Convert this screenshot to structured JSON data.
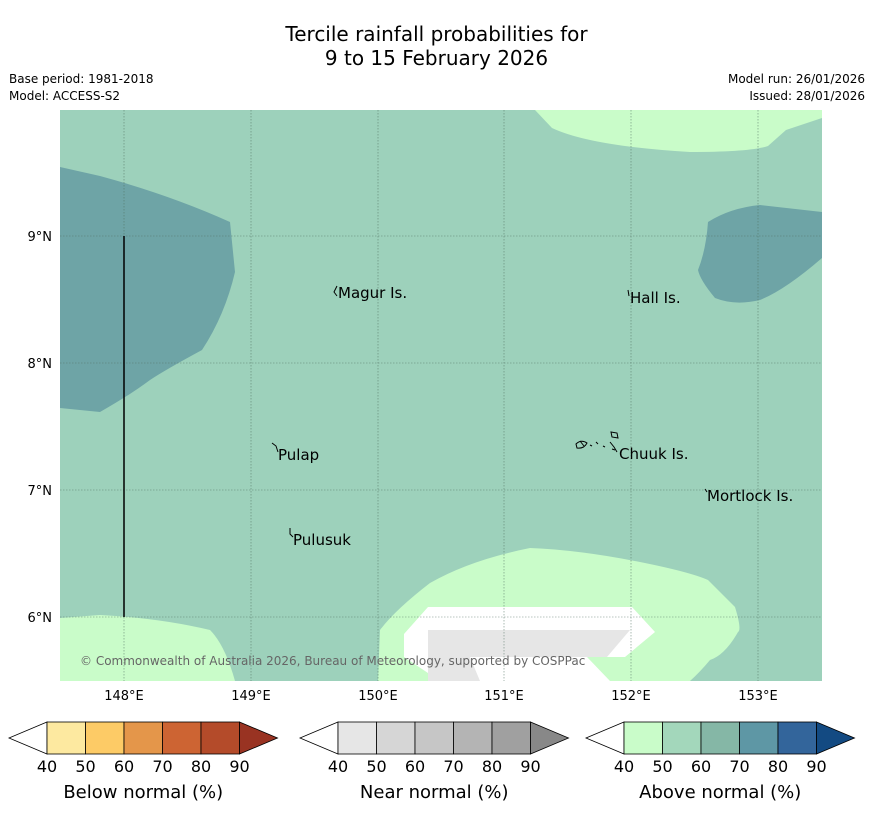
{
  "title": {
    "line1": "Tercile rainfall probabilities for",
    "line2": "9 to 15 February 2026"
  },
  "meta": {
    "base_period": "Base period: 1981-2018",
    "model": "Model: ACCESS-S2",
    "model_run": "Model run: 26/01/2026",
    "issued": "Issued: 28/01/2026"
  },
  "map": {
    "lon_labels": [
      "148°E",
      "149°E",
      "150°E",
      "151°E",
      "152°E",
      "153°E"
    ],
    "lat_labels": [
      "9°N",
      "8°N",
      "7°N",
      "6°N"
    ],
    "places": {
      "magur": "Magur Is.",
      "hall": "Hall Is.",
      "pulap": "Pulap",
      "chuuk": "Chuuk Is.",
      "mortlock": "Mortlock Is.",
      "pulusuk": "Pulusuk"
    },
    "copyright": "© Commonwealth of Australia 2026, Bureau of Meteorology, supported by COSPPac"
  },
  "colorbars": [
    {
      "name": "below",
      "label": "Below normal (%)",
      "ticks": [
        "40",
        "50",
        "60",
        "70",
        "80",
        "90"
      ],
      "colors": [
        "#ffffff",
        "#fde9a0",
        "#fdcb66",
        "#e4964a",
        "#cd6433",
        "#b44b2a",
        "#993322"
      ]
    },
    {
      "name": "near",
      "label": "Near normal (%)",
      "ticks": [
        "40",
        "50",
        "60",
        "70",
        "80",
        "90"
      ],
      "colors": [
        "#ffffff",
        "#e6e6e6",
        "#d6d6d6",
        "#c6c6c6",
        "#b4b4b4",
        "#a0a0a0",
        "#888888"
      ]
    },
    {
      "name": "above",
      "label": "Above normal (%)",
      "ticks": [
        "40",
        "50",
        "60",
        "70",
        "80",
        "90"
      ],
      "colors": [
        "#ffffff",
        "#c9fcc9",
        "#a3d7bb",
        "#85b7a6",
        "#5e97a5",
        "#33659b",
        "#134a82"
      ]
    }
  ],
  "fill_colors": {
    "above_50_60": "#9dd1bb",
    "above_40_50": "#c9fcc9",
    "above_60_70": "#6ea4a6",
    "near_40_50": "#e6e6e6",
    "no_signal": "#ffffff"
  }
}
